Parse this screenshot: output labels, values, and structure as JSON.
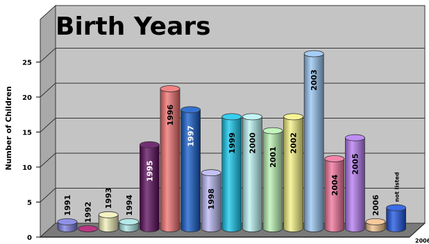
{
  "chart_data": {
    "type": "bar",
    "title": "Birth Years",
    "ylabel": "Number of Children",
    "xlabel": "",
    "ylim": [
      0,
      27
    ],
    "yticks": [
      0,
      5,
      10,
      15,
      20,
      25
    ],
    "grid": true,
    "categories": [
      "1991",
      "1992",
      "1993",
      "1994",
      "1995",
      "1996",
      "1997",
      "1998",
      "1999",
      "2000",
      "2001",
      "2002",
      "2003",
      "2004",
      "2005",
      "2006",
      "not listed"
    ],
    "values": [
      1,
      0,
      2,
      1,
      12,
      20,
      17,
      8,
      16,
      16,
      14,
      16,
      25,
      10,
      13,
      1,
      3
    ],
    "colors": [
      "#7a7ee0",
      "#b0136e",
      "#f2efb8",
      "#a8e4e4",
      "#5a0a5a",
      "#f06d6d",
      "#1259c8",
      "#b8b6f2",
      "#12c6ec",
      "#b8f2f2",
      "#b8f2b0",
      "#f6f282",
      "#96c4f2",
      "#f2709a",
      "#b47af2",
      "#f2c088",
      "#1a52e0"
    ],
    "label_colors": [
      "#000000",
      "#000000",
      "#000000",
      "#000000",
      "#ffffff",
      "#000000",
      "#ffffff",
      "#000000",
      "#000000",
      "#000000",
      "#000000",
      "#000000",
      "#000000",
      "#000000",
      "#000000",
      "#000000",
      "#000000"
    ],
    "extra_axis_label": "2006"
  }
}
